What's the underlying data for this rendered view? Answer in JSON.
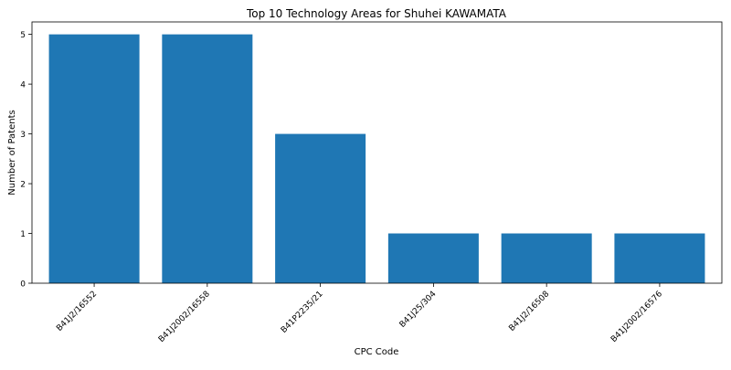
{
  "chart_data": {
    "type": "bar",
    "title": "Top 10 Technology Areas for Shuhei KAWAMATA",
    "xlabel": "CPC Code",
    "ylabel": "Number of Patents",
    "categories": [
      "B41J2/16552",
      "B41J2002/16558",
      "B41P2235/21",
      "B41J25/304",
      "B41J2/16508",
      "B41J2002/16576"
    ],
    "values": [
      5,
      5,
      3,
      1,
      1,
      1
    ],
    "ylim": [
      0,
      5.25
    ],
    "yticks": [
      0,
      1,
      2,
      3,
      4,
      5
    ],
    "grid": false,
    "bar_color": "#1f77b4"
  }
}
